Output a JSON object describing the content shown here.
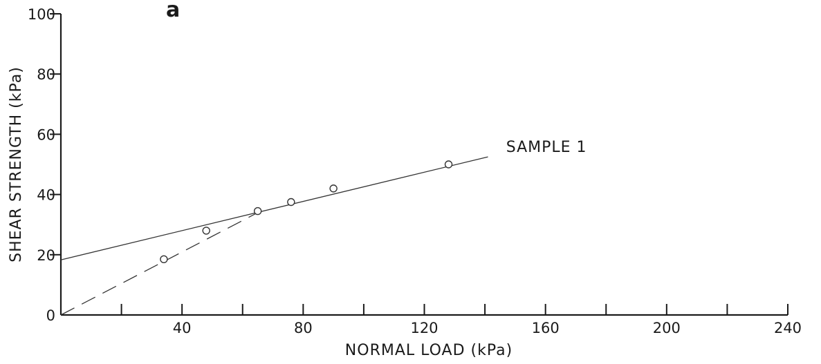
{
  "chart_data": {
    "type": "scatter",
    "panel_label": "a",
    "xlabel": "NORMAL LOAD (kPa)",
    "ylabel": "SHEAR STRENGTH (kPa)",
    "xlim": [
      0,
      240
    ],
    "ylim": [
      0,
      100
    ],
    "x_ticks": [
      0,
      20,
      40,
      60,
      80,
      100,
      120,
      140,
      160,
      180,
      200,
      220,
      240
    ],
    "x_tick_labels": [
      {
        "value": 40,
        "label": "40"
      },
      {
        "value": 80,
        "label": "80"
      },
      {
        "value": 120,
        "label": "120"
      },
      {
        "value": 160,
        "label": "160"
      },
      {
        "value": 200,
        "label": "200"
      },
      {
        "value": 240,
        "label": "240"
      }
    ],
    "y_tick_labels": [
      {
        "value": 0,
        "label": "0"
      },
      {
        "value": 20,
        "label": "20"
      },
      {
        "value": 40,
        "label": "40"
      },
      {
        "value": 60,
        "label": "60"
      },
      {
        "value": 80,
        "label": "80"
      },
      {
        "value": 100,
        "label": "100"
      }
    ],
    "grid": false,
    "series": [
      {
        "name": "SAMPLE 1",
        "points": [
          {
            "x": 34,
            "y": 18.5
          },
          {
            "x": 48,
            "y": 28
          },
          {
            "x": 65,
            "y": 34.5
          },
          {
            "x": 76,
            "y": 37.5
          },
          {
            "x": 90,
            "y": 42
          },
          {
            "x": 128,
            "y": 50
          }
        ]
      }
    ],
    "fit_lines": [
      {
        "style": "solid",
        "from": {
          "x": 0,
          "y": 18.3
        },
        "to": {
          "x": 141,
          "y": 52.5
        }
      },
      {
        "style": "dashed",
        "from": {
          "x": 0,
          "y": 0
        },
        "to": {
          "x": 66,
          "y": 34.5
        }
      }
    ],
    "annotations": [
      {
        "text": "SAMPLE 1",
        "x": 147,
        "y": 56
      }
    ]
  }
}
